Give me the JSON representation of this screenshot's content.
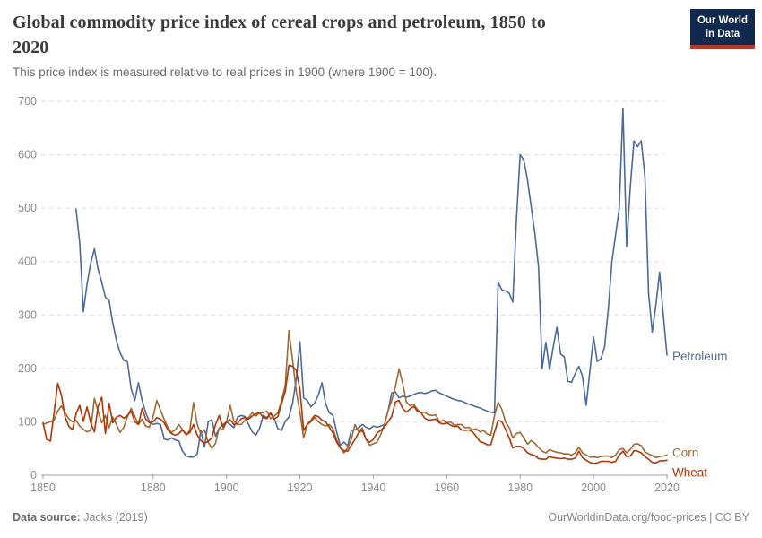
{
  "header": {
    "title_lines": [
      "Global commodity price index of cereal crops and petroleum, 1850 to",
      "2020"
    ],
    "subtitle": "This price index is measured relative to real prices in 1900 (where 1900 = 100)."
  },
  "logo": {
    "line1": "Our World",
    "line2": "in Data"
  },
  "footer": {
    "source_label": "Data source:",
    "source_value": " Jacks (2019)",
    "credit": "OurWorldinData.org/food-prices | CC BY"
  },
  "chart_data": {
    "type": "line",
    "title": "Global commodity price index of cereal crops and petroleum, 1850 to 2020",
    "subtitle": "This price index is measured relative to real prices in 1900 (where 1900 = 100).",
    "xlim": [
      1850,
      2020
    ],
    "ylim": [
      0,
      700
    ],
    "x_ticks": [
      1850,
      1880,
      1900,
      1920,
      1940,
      1960,
      1980,
      2000,
      2020
    ],
    "y_ticks": [
      0,
      100,
      200,
      300,
      400,
      500,
      600,
      700
    ],
    "grid": "horizontal-dashed",
    "legend_position": "right-end-of-line-labels",
    "colors": {
      "axis": "#a0a0a0",
      "grid": "#dddddd",
      "tick_text": "#8a8a8a"
    },
    "series": [
      {
        "name": "Petroleum",
        "color": "#4C6A9C",
        "start_year": 1859,
        "values": [
          498,
          436,
          306,
          358,
          397,
          424,
          386,
          361,
          333,
          327,
          285,
          252,
          229,
          215,
          212,
          162,
          140,
          173,
          140,
          117,
          100,
          95,
          97,
          95,
          68,
          66,
          70,
          66,
          64,
          45,
          36,
          34,
          34,
          40,
          84,
          53,
          100,
          104,
          73,
          88,
          95,
          100,
          95,
          89,
          109,
          112,
          110,
          95,
          81,
          75,
          88,
          112,
          108,
          115,
          106,
          87,
          84,
          101,
          109,
          135,
          180,
          250,
          145,
          140,
          128,
          135,
          150,
          173,
          134,
          117,
          112,
          81,
          56,
          62,
          55,
          84,
          85,
          89,
          95,
          90,
          87,
          92,
          90,
          92,
          95,
          120,
          154,
          156,
          145,
          148,
          146,
          148,
          151,
          154,
          155,
          153,
          155,
          158,
          159,
          154,
          151,
          148,
          145,
          142,
          140,
          139,
          136,
          133,
          131,
          128,
          126,
          123,
          120,
          118,
          117,
          361,
          347,
          345,
          341,
          324,
          480,
          600,
          590,
          553,
          503,
          453,
          391,
          200,
          249,
          198,
          240,
          277,
          227,
          222,
          176,
          174,
          190,
          204,
          185,
          131,
          195,
          259,
          213,
          218,
          240,
          310,
          400,
          450,
          500,
          687,
          428,
          540,
          626,
          615,
          626,
          560,
          340,
          268,
          320,
          380,
          300,
          225
        ]
      },
      {
        "name": "Corn",
        "color": "#9C6B35",
        "start_year": 1850,
        "values": [
          95,
          98,
          100,
          103,
          120,
          130,
          117,
          106,
          100,
          103,
          92,
          86,
          81,
          84,
          144,
          120,
          98,
          112,
          89,
          109,
          95,
          80,
          90,
          110,
          125,
          110,
          95,
          105,
          92,
          90,
          110,
          140,
          122,
          105,
          90,
          80,
          85,
          95,
          85,
          75,
          85,
          136,
          95,
          78,
          85,
          62,
          50,
          60,
          89,
          85,
          100,
          131,
          101,
          95,
          95,
          103,
          108,
          117,
          111,
          117,
          117,
          120,
          106,
          111,
          117,
          140,
          168,
          271,
          215,
          157,
          117,
          70,
          95,
          100,
          108,
          100,
          95,
          92,
          95,
          87,
          67,
          51,
          42,
          51,
          67,
          95,
          81,
          89,
          67,
          56,
          59,
          62,
          76,
          95,
          120,
          140,
          165,
          199,
          172,
          137,
          130,
          133,
          123,
          117,
          118,
          113,
          112,
          113,
          100,
          103,
          98,
          100,
          94,
          95,
          95,
          89,
          90,
          85,
          87,
          81,
          84,
          77,
          75,
          112,
          137,
          123,
          100,
          89,
          70,
          78,
          80,
          70,
          58,
          65,
          60,
          52,
          45,
          42,
          48,
          45,
          43,
          42,
          40,
          40,
          38,
          42,
          52,
          42,
          38,
          34,
          34,
          33,
          35,
          36,
          36,
          33,
          38,
          48,
          50,
          42,
          48,
          58,
          59,
          55,
          44,
          40,
          37,
          33,
          35,
          36,
          38
        ]
      },
      {
        "name": "Wheat",
        "color": "#B13507",
        "start_year": 1850,
        "values": [
          98,
          67,
          64,
          117,
          172,
          150,
          109,
          92,
          85,
          115,
          131,
          101,
          128,
          98,
          81,
          129,
          146,
          78,
          135,
          98,
          109,
          112,
          107,
          112,
          120,
          100,
          95,
          125,
          105,
          98,
          100,
          108,
          105,
          98,
          85,
          78,
          75,
          78,
          85,
          76,
          80,
          95,
          75,
          65,
          60,
          63,
          70,
          95,
          112,
          90,
          100,
          104,
          95,
          97,
          106,
          108,
          105,
          111,
          115,
          117,
          108,
          106,
          117,
          105,
          110,
          134,
          157,
          206,
          204,
          196,
          160,
          84,
          95,
          103,
          112,
          110,
          103,
          100,
          90,
          79,
          62,
          51,
          46,
          45,
          56,
          67,
          79,
          84,
          67,
          62,
          67,
          79,
          84,
          90,
          100,
          110,
          137,
          140,
          125,
          118,
          124,
          129,
          120,
          117,
          107,
          103,
          104,
          105,
          98,
          96,
          98,
          94,
          91,
          92,
          85,
          84,
          85,
          81,
          73,
          63,
          61,
          57,
          57,
          81,
          103,
          100,
          86,
          70,
          51,
          54,
          54,
          50,
          42,
          39,
          37,
          31,
          30,
          30,
          35,
          33,
          32,
          31,
          32,
          30,
          30,
          32,
          45,
          33,
          28,
          24,
          22,
          23,
          26,
          26,
          26,
          24,
          26,
          38,
          45,
          35,
          36,
          46,
          45,
          42,
          35,
          30,
          24,
          23,
          27,
          27,
          28
        ]
      }
    ]
  }
}
